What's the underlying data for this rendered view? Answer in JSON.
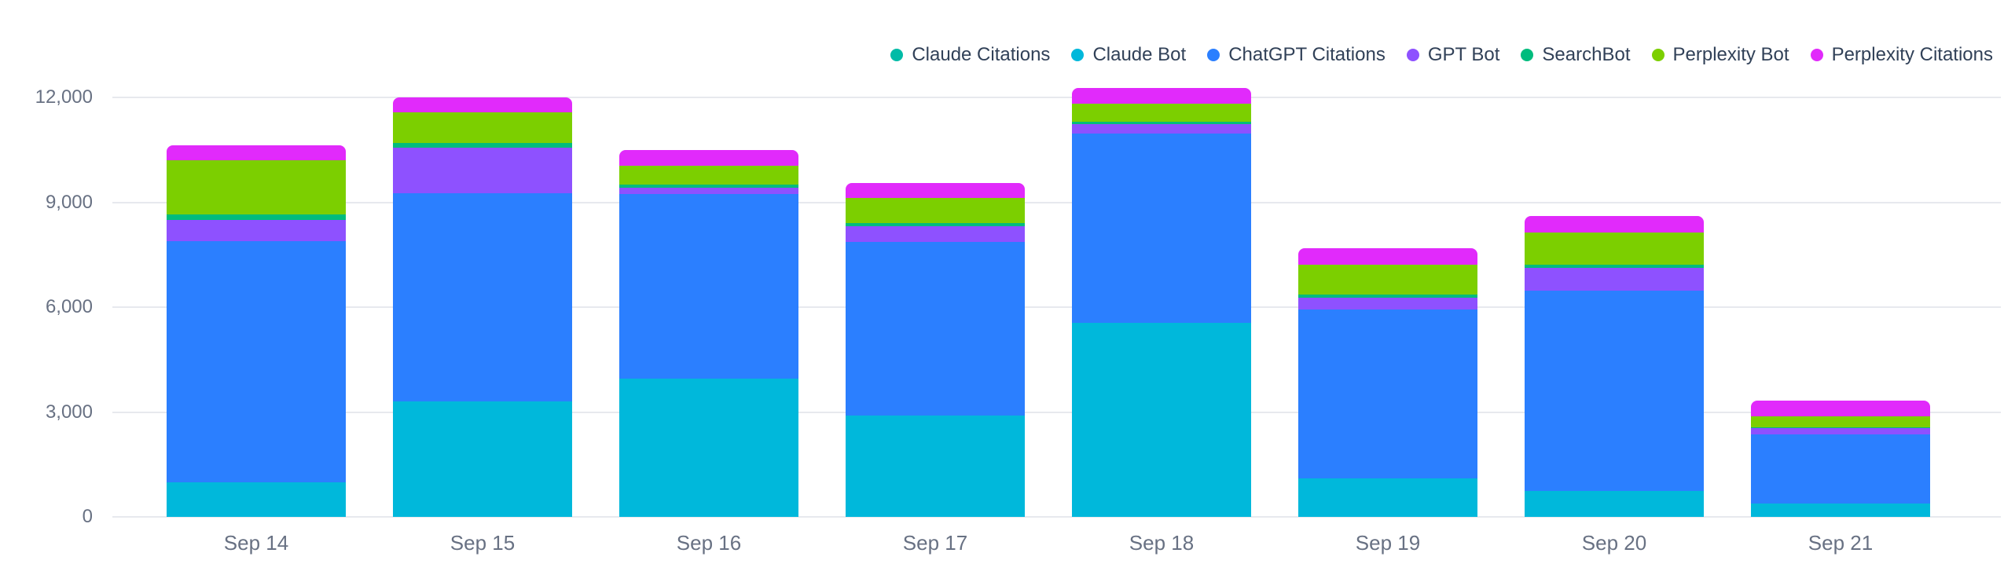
{
  "chart_data": {
    "type": "bar",
    "stacked": true,
    "title": "",
    "categories": [
      "Sep 14",
      "Sep 15",
      "Sep 16",
      "Sep 17",
      "Sep 18",
      "Sep 19",
      "Sep 20",
      "Sep 21"
    ],
    "series": [
      {
        "name": "Claude Citations",
        "color": "#00bba7",
        "values": [
          0,
          0,
          0,
          0,
          0,
          0,
          0,
          0
        ]
      },
      {
        "name": "Claude Bot",
        "color": "#00b8db",
        "values": [
          1000,
          3300,
          3950,
          2900,
          5550,
          1100,
          750,
          380
        ]
      },
      {
        "name": "ChatGPT Citations",
        "color": "#2b7fff",
        "values": [
          6900,
          5970,
          5300,
          4980,
          5420,
          4830,
          5735,
          1970
        ]
      },
      {
        "name": "GPT Bot",
        "color": "#8e51ff",
        "values": [
          600,
          1310,
          170,
          440,
          270,
          335,
          650,
          185
        ]
      },
      {
        "name": "SearchBot",
        "color": "#00bc7d",
        "values": [
          150,
          130,
          85,
          85,
          70,
          110,
          85,
          40
        ]
      },
      {
        "name": "Perplexity Bot",
        "color": "#7ccf00",
        "values": [
          1560,
          880,
          550,
          720,
          510,
          845,
          930,
          300
        ]
      },
      {
        "name": "Perplexity Citations",
        "color": "#e12afb",
        "values": [
          420,
          430,
          450,
          440,
          465,
          465,
          465,
          450
        ]
      }
    ],
    "totals": [
      10630,
      12020,
      10505,
      9565,
      12285,
      7685,
      8615,
      3325
    ],
    "xlabel": "",
    "ylabel": "",
    "ylim": [
      0,
      13000
    ],
    "yticks": [
      {
        "value": 0,
        "label": "0"
      },
      {
        "value": 3000,
        "label": "3,000"
      },
      {
        "value": 6000,
        "label": "6,000"
      },
      {
        "value": 9000,
        "label": "9,000"
      },
      {
        "value": 12000,
        "label": "12,000"
      }
    ],
    "grid": true,
    "legend_position": "top-right"
  },
  "style": {
    "background_color": "#ffffff",
    "gridline_color": "#e7e9ee",
    "axis_label_color": "#687183",
    "legend_text_color": "#314158"
  }
}
